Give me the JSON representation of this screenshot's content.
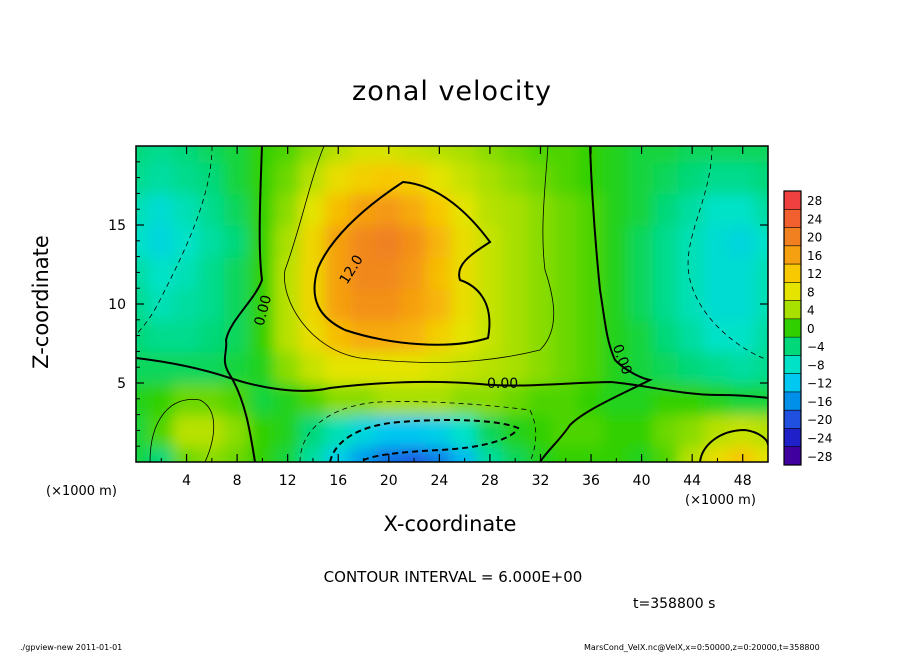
{
  "figure": {
    "title": "zonal velocity",
    "xlabel": "X-coordinate",
    "ylabel": "Z-coordinate",
    "x_unit_left": "(×1000 m)",
    "x_unit_right": "(×1000 m)",
    "contour_interval_text": "CONTOUR INTERVAL = 6.000E+00",
    "time_text": "t=358800 s",
    "footer_left": "./gpview-new   2011-01-01",
    "footer_right": "MarsCond_VelX.nc@VelX,x=0:50000,z=0:20000,t=358800"
  },
  "chart_data": {
    "type": "heatmap",
    "title": "zonal velocity",
    "xlabel": "X-coordinate",
    "ylabel": "Z-coordinate",
    "x_unit": "×1000 m",
    "xlim": [
      0,
      50
    ],
    "ylim": [
      0,
      20
    ],
    "x_ticks": [
      4,
      8,
      12,
      16,
      20,
      24,
      28,
      32,
      36,
      40,
      44,
      48
    ],
    "y_ticks": [
      5,
      10,
      15
    ],
    "contour_interval": 6.0,
    "time": "t=358800 s",
    "contour_labels": [
      {
        "text": "12.0",
        "x": 17,
        "z": 12.2
      },
      {
        "text": "0.00",
        "x": 10,
        "z": 9.6
      },
      {
        "text": "0.00",
        "x": 29,
        "z": 5.0
      },
      {
        "text": "0.00",
        "x": 38.5,
        "z": 6.5
      }
    ],
    "colorbar": {
      "levels": [
        28,
        24,
        20,
        16,
        12,
        8,
        4,
        0,
        -4,
        -8,
        -12,
        -16,
        -20,
        -24,
        -28
      ],
      "colors": [
        "#f04040",
        "#f26030",
        "#f08020",
        "#f5a010",
        "#f8c800",
        "#e4e400",
        "#a8e000",
        "#30d000",
        "#00d87a",
        "#00e2c8",
        "#00c8f0",
        "#0090ea",
        "#2050e0",
        "#2020c8",
        "#4000a0"
      ]
    },
    "grid_nx": 26,
    "grid_nz": 11,
    "grid_x_range": [
      0,
      50
    ],
    "grid_z_range": [
      0,
      20
    ],
    "values": [
      [
        -2,
        -4,
        2,
        3,
        2,
        0,
        -2,
        -6,
        -11,
        -15,
        -18,
        -19,
        -17,
        -13,
        -6,
        -3,
        -1,
        0,
        0,
        0,
        -1,
        1,
        5,
        9,
        12,
        8
      ],
      [
        -2,
        1,
        5,
        5,
        3,
        0,
        -1,
        -4,
        -7,
        -10,
        -12,
        -12,
        -11,
        -8,
        -3,
        -1,
        0,
        1,
        1,
        0,
        0,
        2,
        3,
        5,
        6,
        5
      ],
      [
        -1,
        0,
        2,
        2,
        1,
        -2,
        -1,
        1,
        3,
        3,
        4,
        4,
        4,
        3,
        3,
        2,
        1,
        1,
        0,
        -1,
        -1,
        0,
        0,
        -1,
        -2,
        -2
      ],
      [
        -3,
        -3,
        -3,
        -3,
        -2,
        -1,
        3,
        6,
        8,
        8,
        8,
        8,
        7,
        6,
        5,
        4,
        3,
        2,
        1,
        -1,
        -2,
        -3,
        -4,
        -5,
        -6,
        -5
      ],
      [
        -4,
        -5,
        -5,
        -4,
        -3,
        0,
        5,
        9,
        13,
        15,
        15,
        14,
        11,
        8,
        6,
        4,
        3,
        2,
        1,
        -1,
        -2,
        -4,
        -6,
        -8,
        -8,
        -6
      ],
      [
        -5,
        -7,
        -6,
        -5,
        -3,
        0,
        5,
        10,
        16,
        18,
        18,
        16,
        14,
        9,
        6,
        4,
        3,
        2,
        1,
        -1,
        -3,
        -5,
        -7,
        -9,
        -9,
        -7
      ],
      [
        -6,
        -8,
        -7,
        -5,
        -3,
        0,
        5,
        10,
        16,
        19,
        19,
        17,
        13,
        9,
        6,
        4,
        3,
        2,
        1,
        -1,
        -3,
        -5,
        -7,
        -9,
        -9,
        -7
      ],
      [
        -8,
        -10,
        -8,
        -6,
        -4,
        0,
        4,
        10,
        16,
        19,
        20,
        18,
        14,
        9,
        6,
        4,
        3,
        2,
        1,
        -1,
        -3,
        -5,
        -7,
        -9,
        -10,
        -8
      ],
      [
        -7,
        -9,
        -7,
        -5,
        -3,
        0,
        3,
        8,
        13,
        16,
        17,
        15,
        12,
        8,
        5,
        4,
        3,
        2,
        1,
        -1,
        -2,
        -4,
        -6,
        -8,
        -8,
        -6
      ],
      [
        -5,
        -6,
        -5,
        -4,
        -2,
        0,
        2,
        5,
        9,
        11,
        12,
        11,
        8,
        6,
        4,
        3,
        2,
        1,
        0,
        -1,
        -2,
        -3,
        -4,
        -5,
        -5,
        -4
      ],
      [
        -4,
        -5,
        -4,
        -3,
        -2,
        0,
        1,
        3,
        5,
        7,
        7,
        6,
        5,
        4,
        3,
        2,
        1,
        1,
        0,
        -1,
        -2,
        -2,
        -3,
        -3,
        -3,
        -3
      ]
    ]
  }
}
